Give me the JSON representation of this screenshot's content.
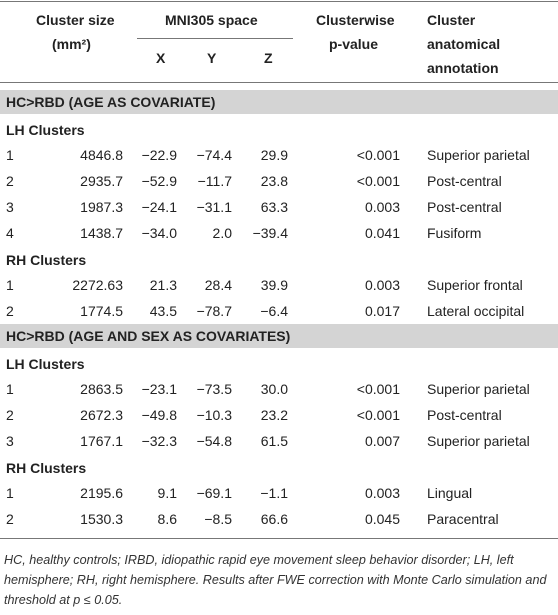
{
  "table": {
    "header": {
      "cluster_size": [
        "Cluster size",
        "(mm²)"
      ],
      "mni": "MNI305 space",
      "axes": [
        "X",
        "Y",
        "Z"
      ],
      "p_value": [
        "Clusterwise",
        "p-value"
      ],
      "annotation": [
        "Cluster",
        "anatomical",
        "annotation"
      ]
    },
    "sections": [
      {
        "title": "HC>RBD (AGE AS COVARIATE)",
        "groups": [
          {
            "label": "LH Clusters",
            "rows": [
              [
                "1",
                "4846.8",
                "−22.9",
                "−74.4",
                "29.9",
                "<0.001",
                "Superior parietal"
              ],
              [
                "2",
                "2935.7",
                "−52.9",
                "−11.7",
                "23.8",
                "<0.001",
                "Post-central"
              ],
              [
                "3",
                "1987.3",
                "−24.1",
                "−31.1",
                "63.3",
                "0.003",
                "Post-central"
              ],
              [
                "4",
                "1438.7",
                "−34.0",
                "2.0",
                "−39.4",
                "0.041",
                "Fusiform"
              ]
            ]
          },
          {
            "label": "RH Clusters",
            "rows": [
              [
                "1",
                "2272.63",
                "21.3",
                "28.4",
                "39.9",
                "0.003",
                "Superior frontal"
              ],
              [
                "2",
                "1774.5",
                "43.5",
                "−78.7",
                "−6.4",
                "0.017",
                "Lateral occipital"
              ]
            ]
          }
        ]
      },
      {
        "title": "HC>RBD (AGE AND SEX AS COVARIATES)",
        "groups": [
          {
            "label": "LH Clusters",
            "rows": [
              [
                "1",
                "2863.5",
                "−23.1",
                "−73.5",
                "30.0",
                "<0.001",
                "Superior parietal"
              ],
              [
                "2",
                "2672.3",
                "−49.8",
                "−10.3",
                "23.2",
                "<0.001",
                "Post-central"
              ],
              [
                "3",
                "1767.1",
                "−32.3",
                "−54.8",
                "61.5",
                "0.007",
                "Superior parietal"
              ]
            ]
          },
          {
            "label": "RH Clusters",
            "rows": [
              [
                "1",
                "2195.6",
                "9.1",
                "−69.1",
                "−1.1",
                "0.003",
                "Lingual"
              ],
              [
                "2",
                "1530.3",
                "8.6",
                "−8.5",
                "66.6",
                "0.045",
                "Paracentral"
              ]
            ]
          }
        ]
      }
    ]
  },
  "footnote": "HC, healthy controls; IRBD, idiopathic rapid eye movement sleep behavior disorder; LH, left hemisphere; RH, right hemisphere. Results after FWE correction with Monte Carlo simulation and threshold at p ≤ 0.05."
}
